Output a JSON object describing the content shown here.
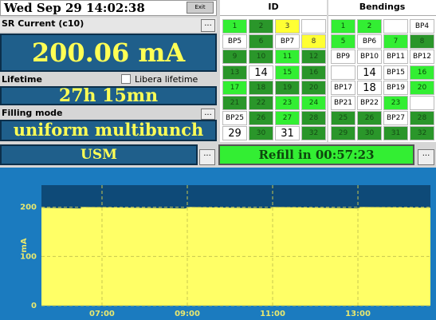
{
  "header": {
    "datetime": "Wed Sep 29 14:02:38",
    "exit": "Exit"
  },
  "sr_current": {
    "label": "SR Current (c10)",
    "value": "200.06 mA",
    "button": "..."
  },
  "lifetime": {
    "label": "Lifetime",
    "checkbox": "Libera lifetime",
    "value": "27h 15mn"
  },
  "filling_mode": {
    "label": "Filling mode",
    "value": "uniform multibunch",
    "button": "..."
  },
  "id_grid": {
    "title": "ID",
    "cells": [
      [
        {
          "text": "1",
          "state": "on"
        },
        {
          "text": "2",
          "state": "dim"
        },
        {
          "text": "3",
          "state": "warn"
        },
        {
          "state": "off"
        }
      ],
      [
        {
          "text": "BP5",
          "state": "off"
        },
        {
          "text": "6",
          "state": "dim"
        },
        {
          "text": "BP7",
          "state": "off"
        },
        {
          "text": "8",
          "state": "warn"
        }
      ],
      [
        {
          "text": "9",
          "state": "dim"
        },
        {
          "text": "10",
          "state": "dim"
        },
        {
          "text": "11",
          "state": "on"
        },
        {
          "text": "12",
          "state": "dim"
        }
      ],
      [
        {
          "text": "13",
          "state": "dim"
        },
        {
          "text": "14",
          "state": "off"
        },
        {
          "text": "15",
          "state": "on"
        },
        {
          "text": "16",
          "state": "dim"
        }
      ],
      [
        {
          "text": "17",
          "state": "on"
        },
        {
          "text": "18",
          "state": "dim"
        },
        {
          "text": "19",
          "state": "dim"
        },
        {
          "text": "20",
          "state": "dim"
        }
      ],
      [
        {
          "text": "21",
          "state": "dim"
        },
        {
          "text": "22",
          "state": "dim"
        },
        {
          "text": "23",
          "state": "on"
        },
        {
          "text": "24",
          "state": "on"
        }
      ],
      [
        {
          "text": "BP25",
          "state": "off"
        },
        {
          "text": "26",
          "state": "dim"
        },
        {
          "text": "27",
          "state": "on"
        },
        {
          "text": "28",
          "state": "dim"
        }
      ],
      [
        {
          "text": "29",
          "state": "off"
        },
        {
          "text": "30",
          "state": "dim"
        },
        {
          "text": "31",
          "state": "off"
        },
        {
          "text": "32",
          "state": "dim"
        }
      ]
    ]
  },
  "bendings": {
    "title": "Bendings",
    "cells": [
      [
        {
          "text": "1",
          "state": "on"
        },
        {
          "text": "2",
          "state": "on"
        },
        {
          "state": "off"
        },
        {
          "text": "BP4",
          "state": "off"
        }
      ],
      [
        {
          "text": "5",
          "state": "on"
        },
        {
          "text": "BP6",
          "state": "off"
        },
        {
          "text": "7",
          "state": "on"
        },
        {
          "text": "8",
          "state": "dim"
        }
      ],
      [
        {
          "text": "BP9",
          "state": "off"
        },
        {
          "text": "BP10",
          "state": "off"
        },
        {
          "text": "BP11",
          "state": "off"
        },
        {
          "text": "BP12",
          "state": "off"
        }
      ],
      [
        {
          "state": "off"
        },
        {
          "text": "14",
          "state": "off"
        },
        {
          "text": "BP15",
          "state": "off"
        },
        {
          "text": "16",
          "state": "on"
        }
      ],
      [
        {
          "text": "BP17",
          "state": "off"
        },
        {
          "text": "18",
          "state": "off"
        },
        {
          "text": "BP19",
          "state": "off"
        },
        {
          "text": "20",
          "state": "on"
        }
      ],
      [
        {
          "text": "BP21",
          "state": "off"
        },
        {
          "text": "BP22",
          "state": "off"
        },
        {
          "text": "23",
          "state": "on"
        },
        {
          "state": "off"
        }
      ],
      [
        {
          "text": "25",
          "state": "dim"
        },
        {
          "text": "26",
          "state": "dim"
        },
        {
          "text": "BP27",
          "state": "off"
        },
        {
          "text": "28",
          "state": "dim"
        }
      ],
      [
        {
          "text": "29",
          "state": "dim"
        },
        {
          "text": "30",
          "state": "dim"
        },
        {
          "text": "31",
          "state": "dim"
        },
        {
          "text": "32",
          "state": "dim"
        }
      ]
    ]
  },
  "mode": {
    "value": "USM",
    "button": "..."
  },
  "refill": {
    "value": "Refill in 00:57:23",
    "button": "..."
  },
  "chart_data": {
    "type": "area",
    "ylabel": "mA",
    "x": [
      5.58,
      6.5,
      6.52,
      8.95,
      9.05,
      10.95,
      11.0,
      13.0,
      13.08,
      14.7
    ],
    "series": [
      {
        "color": "#ffff66",
        "values": [
          199,
          197.5,
          200.5,
          197.5,
          200.5,
          197.8,
          200.5,
          197.8,
          200.5,
          199
        ]
      }
    ],
    "xlim": [
      5.58,
      14.7
    ],
    "ylim": [
      0,
      245
    ],
    "xticks": [
      {
        "value": 7,
        "label": "07:00"
      },
      {
        "value": 9,
        "label": "09:00"
      },
      {
        "value": 11,
        "label": "11:00"
      },
      {
        "value": 13,
        "label": "13:00"
      }
    ],
    "yticks": [
      0,
      100,
      200
    ],
    "grid": true
  }
}
